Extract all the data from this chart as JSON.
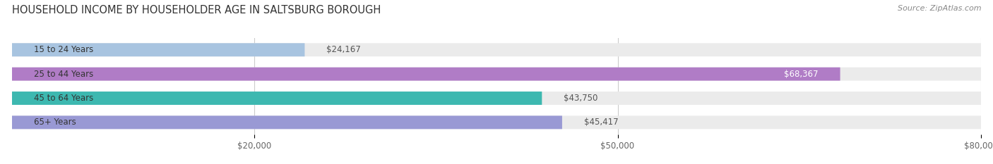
{
  "title": "HOUSEHOLD INCOME BY HOUSEHOLDER AGE IN SALTSBURG BOROUGH",
  "source": "Source: ZipAtlas.com",
  "categories": [
    "15 to 24 Years",
    "25 to 44 Years",
    "45 to 64 Years",
    "65+ Years"
  ],
  "values": [
    24167,
    68367,
    43750,
    45417
  ],
  "bar_colors": [
    "#a8c4e0",
    "#b07cc6",
    "#3db8b0",
    "#9999d4"
  ],
  "bar_bg_color": "#ebebeb",
  "background_color": "#ffffff",
  "xlim": [
    0,
    80000
  ],
  "xticks": [
    20000,
    50000,
    80000
  ],
  "xtick_labels": [
    "$20,000",
    "$50,000",
    "$80,000"
  ],
  "value_labels": [
    "$24,167",
    "$68,367",
    "$43,750",
    "$45,417"
  ],
  "title_fontsize": 10.5,
  "source_fontsize": 8,
  "label_fontsize": 8.5,
  "tick_fontsize": 8.5
}
